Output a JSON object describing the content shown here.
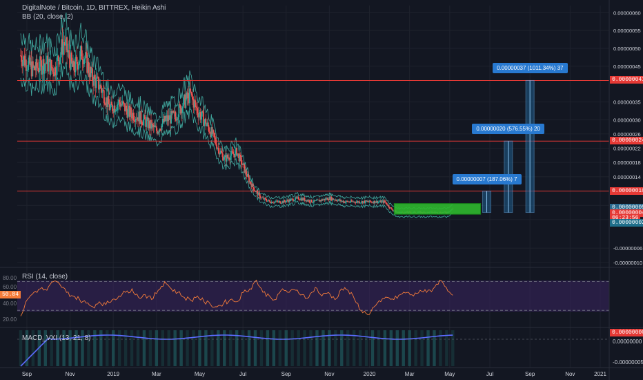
{
  "header": {
    "symbol_line": "DigitalNote / Bitcoin, 1D, BITTREX, Heikin Ashi",
    "bb_label": "BB (20, close, 2)"
  },
  "rsi_pane": {
    "label": "RSI (14, close)",
    "current_value": "50.84",
    "levels": [
      "80.00",
      "60.00",
      "40.00",
      "20.00"
    ]
  },
  "macd_pane": {
    "label": "MACD_VXI (13, 21, 8)",
    "right_labels": [
      "0.00000000",
      "-0.00000005"
    ]
  },
  "colors": {
    "background": "#131722",
    "up": "#26a69a",
    "down": "#ef5350",
    "bb": "#4dd0c1",
    "resistance": "#e53935",
    "callout": "#2879d0",
    "target_box": "#1f5f8f",
    "green_box": "#2eb82e",
    "rsi_line": "#f57c3a",
    "rsi_band": "#3a2461"
  },
  "chart_data": {
    "type": "candlestick",
    "title": "DigitalNote / Bitcoin, 1D, BITTREX, Heikin Ashi",
    "x_ticks": [
      "Sep",
      "Nov",
      "2019",
      "Mar",
      "May",
      "Jul",
      "Sep",
      "Nov",
      "2020",
      "Mar",
      "May",
      "Jul",
      "Sep",
      "Nov",
      "2021"
    ],
    "y_ticks": [
      "0.00000060",
      "0.00000055",
      "0.00000050",
      "0.00000045",
      "0.00000035",
      "0.00000030",
      "0.00000026",
      "0.00000022",
      "0.00000018",
      "0.00000014",
      "0.00000006",
      "0.00000002",
      "-0.00000006",
      "-0.00000010"
    ],
    "ylim": [
      -1.1e-07,
      6.2e-07
    ],
    "price_path": [
      [
        0,
        4.8e-07
      ],
      [
        4,
        4.4e-07
      ],
      [
        8,
        4.6e-07
      ],
      [
        11,
        4.4e-07
      ],
      [
        14,
        5.2e-07
      ],
      [
        17,
        4.4e-07
      ],
      [
        20,
        4.9e-07
      ],
      [
        23,
        4.2e-07
      ],
      [
        26,
        3.9e-07
      ],
      [
        29,
        3.3e-07
      ],
      [
        32,
        3.5e-07
      ],
      [
        35,
        3.2e-07
      ],
      [
        38,
        3.1e-07
      ],
      [
        41,
        2.9e-07
      ],
      [
        44,
        2.7e-07
      ],
      [
        47,
        3e-07
      ],
      [
        50,
        3.1e-07
      ],
      [
        53,
        3.5e-07
      ],
      [
        55,
        3.7e-07
      ],
      [
        57,
        3.3e-07
      ],
      [
        60,
        2.9e-07
      ],
      [
        62,
        2.6e-07
      ],
      [
        64,
        2.2e-07
      ],
      [
        66,
        1.9e-07
      ],
      [
        68,
        2e-07
      ],
      [
        70,
        2.1e-07
      ],
      [
        72,
        1.7e-07
      ],
      [
        74,
        1.3e-07
      ],
      [
        76,
        1e-07
      ],
      [
        78,
        8e-08
      ],
      [
        81,
        7e-08
      ],
      [
        85,
        7e-08
      ],
      [
        90,
        8e-08
      ],
      [
        95,
        7e-08
      ],
      [
        100,
        8e-08
      ],
      [
        105,
        7e-08
      ],
      [
        110,
        7e-08
      ],
      [
        115,
        7e-08
      ],
      [
        118,
        7e-08
      ],
      [
        120,
        5e-08
      ],
      [
        122,
        4e-08
      ],
      [
        126,
        4e-08
      ],
      [
        132,
        4e-08
      ],
      [
        138,
        4e-08
      ],
      [
        140,
        5e-08
      ]
    ],
    "horizontal_levels": [
      {
        "price": 4.1e-07,
        "label": "0.00000041"
      },
      {
        "price": 2.4e-07,
        "label": "0.00000024"
      },
      {
        "price": 1e-07,
        "label": "0.00000010"
      }
    ],
    "price_tags": [
      {
        "label": "0.00000005",
        "price": 5.2e-08,
        "color": "#2b6a8f"
      },
      {
        "label": "0.00000004",
        "price": 3.8e-08,
        "color": "#e53935"
      },
      {
        "label": "06:23:56",
        "price": 2.4e-08,
        "color": "#e53935"
      },
      {
        "label": "0.00000002",
        "price": 1e-08,
        "color": "#1f6f8b"
      }
    ],
    "targets": [
      {
        "x": 151,
        "from": 4e-08,
        "to": 1e-07,
        "label": "0.00000007 (187.06%) 7"
      },
      {
        "x": 158,
        "from": 4e-08,
        "to": 2.4e-07,
        "label": "0.00000020 (576.55%) 20"
      },
      {
        "x": 165,
        "from": 4e-08,
        "to": 4.1e-07,
        "label": "0.00000037 (1011.34%) 37"
      }
    ],
    "accumulation_box": {
      "x_from": 121,
      "x_to": 149,
      "low": 3.5e-08,
      "high": 6.5e-08
    },
    "rsi": {
      "ylim": [
        10,
        85
      ],
      "levels": [
        70,
        30
      ],
      "values": [
        22,
        45,
        55,
        60,
        58,
        70,
        66,
        55,
        50,
        45,
        40,
        35,
        42,
        38,
        45,
        50,
        55,
        60,
        48,
        52,
        45,
        58,
        70,
        60,
        55,
        48,
        44,
        50,
        42,
        38,
        35,
        40,
        45,
        42,
        55,
        60,
        72,
        55,
        50,
        45,
        60,
        55,
        58,
        52,
        48,
        62,
        50,
        55,
        45,
        60,
        58,
        45,
        30,
        24,
        35,
        42,
        48,
        45,
        52,
        55,
        50,
        58,
        55,
        60,
        72,
        62,
        51
      ]
    }
  }
}
